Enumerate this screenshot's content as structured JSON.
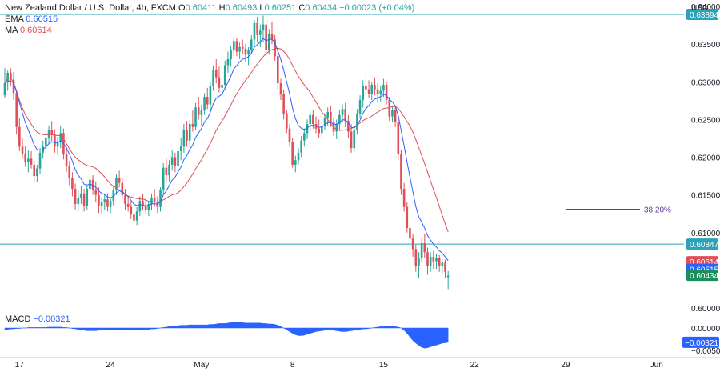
{
  "header": {
    "symbol_line": "New Zealand Dollar / U.S. Dollar, 4h, FXCM",
    "ohlc": [
      {
        "k": "O",
        "v": "0.60411"
      },
      {
        "k": "H",
        "v": "0.60493"
      },
      {
        "k": "L",
        "v": "0.60251"
      },
      {
        "k": "C",
        "v": "0.60434"
      }
    ],
    "change": "+0.00023 (+0.04%)",
    "ema_label": "EMA",
    "ema_value": "0.60515",
    "ma_label": "MA",
    "ma_value": "0.60614",
    "macd_label": "MACD",
    "macd_value": "−0.00321"
  },
  "colors": {
    "up": "#26a69a",
    "down": "#e04f57",
    "ema": "#2962ff",
    "ma": "#e04f57",
    "hline": "#2aa3b8",
    "fib": "#5b3a99",
    "macd": "#2962ff",
    "close_tag": "#1b8f5b"
  },
  "chart_data": [
    {
      "type": "candlestick",
      "title": "New Zealand Dollar / U.S. Dollar, 4h, FXCM",
      "ylabel": "USD",
      "ylim": [
        0.6,
        0.64
      ],
      "y_ticks": [
        "0.64000",
        "0.63500",
        "0.63000",
        "0.62500",
        "0.62000",
        "0.61500",
        "0.61000",
        "0.60000"
      ],
      "x_ticks": [
        "17",
        "24",
        "May",
        "8",
        "15",
        "22",
        "29",
        "Jun"
      ],
      "x_tick_index": [
        5,
        36,
        67,
        98,
        129,
        160,
        191,
        222
      ],
      "ohlc": [
        [
          0.6282,
          0.6318,
          0.6278,
          0.6298
        ],
        [
          0.6299,
          0.6315,
          0.6288,
          0.6312
        ],
        [
          0.6312,
          0.6318,
          0.6294,
          0.6303
        ],
        [
          0.6303,
          0.6313,
          0.6276,
          0.6285
        ],
        [
          0.6285,
          0.6288,
          0.623,
          0.624
        ],
        [
          0.624,
          0.6252,
          0.6208,
          0.6214
        ],
        [
          0.6214,
          0.6226,
          0.6198,
          0.6205
        ],
        [
          0.6205,
          0.6215,
          0.6187,
          0.6194
        ],
        [
          0.6194,
          0.6209,
          0.618,
          0.6198
        ],
        [
          0.6198,
          0.6208,
          0.6185,
          0.619
        ],
        [
          0.619,
          0.6196,
          0.6166,
          0.6175
        ],
        [
          0.6175,
          0.619,
          0.6167,
          0.6185
        ],
        [
          0.6185,
          0.6212,
          0.6178,
          0.6206
        ],
        [
          0.6206,
          0.6222,
          0.6198,
          0.6214
        ],
        [
          0.6214,
          0.6232,
          0.6206,
          0.6226
        ],
        [
          0.6226,
          0.6242,
          0.6217,
          0.6236
        ],
        [
          0.6236,
          0.6248,
          0.6221,
          0.623
        ],
        [
          0.623,
          0.6237,
          0.6206,
          0.6214
        ],
        [
          0.6214,
          0.6227,
          0.6203,
          0.622
        ],
        [
          0.622,
          0.6242,
          0.6212,
          0.6232
        ],
        [
          0.6232,
          0.6238,
          0.6197,
          0.6204
        ],
        [
          0.6204,
          0.6214,
          0.618,
          0.6188
        ],
        [
          0.6188,
          0.6195,
          0.6163,
          0.6172
        ],
        [
          0.6172,
          0.618,
          0.6148,
          0.6158
        ],
        [
          0.6158,
          0.6165,
          0.613,
          0.6138
        ],
        [
          0.6138,
          0.6156,
          0.6128,
          0.6146
        ],
        [
          0.6146,
          0.6162,
          0.6138,
          0.6152
        ],
        [
          0.6152,
          0.6158,
          0.6128,
          0.6136
        ],
        [
          0.6136,
          0.6162,
          0.613,
          0.6158
        ],
        [
          0.6158,
          0.6178,
          0.615,
          0.617
        ],
        [
          0.617,
          0.6176,
          0.615,
          0.6156
        ],
        [
          0.6156,
          0.6168,
          0.614,
          0.615
        ],
        [
          0.615,
          0.616,
          0.6126,
          0.6135
        ],
        [
          0.6135,
          0.6145,
          0.6124,
          0.614
        ],
        [
          0.614,
          0.6152,
          0.613,
          0.6144
        ],
        [
          0.6144,
          0.6152,
          0.6128,
          0.6134
        ],
        [
          0.6134,
          0.6146,
          0.6126,
          0.6142
        ],
        [
          0.6142,
          0.6162,
          0.6136,
          0.6156
        ],
        [
          0.6156,
          0.6178,
          0.615,
          0.6172
        ],
        [
          0.6172,
          0.6182,
          0.616,
          0.6166
        ],
        [
          0.6166,
          0.6172,
          0.6144,
          0.615
        ],
        [
          0.615,
          0.6158,
          0.613,
          0.6138
        ],
        [
          0.6138,
          0.6148,
          0.6128,
          0.6134
        ],
        [
          0.6134,
          0.6142,
          0.6118,
          0.6124
        ],
        [
          0.6124,
          0.613,
          0.6112,
          0.6116
        ],
        [
          0.6116,
          0.6134,
          0.611,
          0.6128
        ],
        [
          0.6128,
          0.6148,
          0.6122,
          0.6142
        ],
        [
          0.6142,
          0.6152,
          0.613,
          0.6136
        ],
        [
          0.6136,
          0.6146,
          0.6124,
          0.613
        ],
        [
          0.613,
          0.6142,
          0.6122,
          0.6138
        ],
        [
          0.6138,
          0.6152,
          0.613,
          0.6146
        ],
        [
          0.6146,
          0.6158,
          0.6134,
          0.614
        ],
        [
          0.614,
          0.6148,
          0.6126,
          0.6134
        ],
        [
          0.6134,
          0.616,
          0.6128,
          0.6156
        ],
        [
          0.6156,
          0.6192,
          0.615,
          0.6186
        ],
        [
          0.6186,
          0.6198,
          0.6168,
          0.6176
        ],
        [
          0.6176,
          0.6196,
          0.6168,
          0.619
        ],
        [
          0.619,
          0.621,
          0.6182,
          0.62
        ],
        [
          0.62,
          0.6206,
          0.618,
          0.6188
        ],
        [
          0.6188,
          0.6212,
          0.6182,
          0.6208
        ],
        [
          0.6208,
          0.6226,
          0.6196,
          0.6214
        ],
        [
          0.6214,
          0.6244,
          0.6206,
          0.6236
        ],
        [
          0.6236,
          0.6248,
          0.6214,
          0.6222
        ],
        [
          0.6222,
          0.625,
          0.6216,
          0.6244
        ],
        [
          0.6244,
          0.6262,
          0.6234,
          0.624
        ],
        [
          0.624,
          0.6272,
          0.6236,
          0.6266
        ],
        [
          0.6266,
          0.628,
          0.625,
          0.6256
        ],
        [
          0.6256,
          0.627,
          0.6242,
          0.6262
        ],
        [
          0.6262,
          0.6285,
          0.6256,
          0.628
        ],
        [
          0.628,
          0.6292,
          0.6264,
          0.627
        ],
        [
          0.627,
          0.63,
          0.6262,
          0.6294
        ],
        [
          0.6294,
          0.6322,
          0.6288,
          0.6316
        ],
        [
          0.6316,
          0.633,
          0.6298,
          0.6306
        ],
        [
          0.6306,
          0.632,
          0.6286,
          0.6292
        ],
        [
          0.6292,
          0.6304,
          0.6278,
          0.6296
        ],
        [
          0.6296,
          0.6328,
          0.629,
          0.6322
        ],
        [
          0.6322,
          0.634,
          0.6312,
          0.633
        ],
        [
          0.633,
          0.6348,
          0.632,
          0.6342
        ],
        [
          0.6342,
          0.636,
          0.6334,
          0.6354
        ],
        [
          0.6354,
          0.6358,
          0.6334,
          0.634
        ],
        [
          0.634,
          0.6352,
          0.633,
          0.6346
        ],
        [
          0.6346,
          0.6356,
          0.6336,
          0.6344
        ],
        [
          0.6344,
          0.635,
          0.6326,
          0.6336
        ],
        [
          0.6336,
          0.6346,
          0.6322,
          0.6342
        ],
        [
          0.6342,
          0.6362,
          0.6336,
          0.6356
        ],
        [
          0.6356,
          0.6382,
          0.6348,
          0.6378
        ],
        [
          0.6378,
          0.6386,
          0.6352,
          0.6362
        ],
        [
          0.6362,
          0.6376,
          0.6346,
          0.6368
        ],
        [
          0.6368,
          0.6388,
          0.6352,
          0.6376
        ],
        [
          0.6376,
          0.6382,
          0.6334,
          0.6342
        ],
        [
          0.6342,
          0.637,
          0.6336,
          0.6364
        ],
        [
          0.6364,
          0.638,
          0.635,
          0.6356
        ],
        [
          0.6356,
          0.6362,
          0.6328,
          0.6334
        ],
        [
          0.6334,
          0.6342,
          0.629,
          0.6298
        ],
        [
          0.6298,
          0.6304,
          0.6276,
          0.6284
        ],
        [
          0.6284,
          0.629,
          0.625,
          0.6258
        ],
        [
          0.6258,
          0.6262,
          0.6232,
          0.6238
        ],
        [
          0.6238,
          0.6244,
          0.6214,
          0.622
        ],
        [
          0.622,
          0.6226,
          0.6186,
          0.619
        ],
        [
          0.619,
          0.6202,
          0.618,
          0.6196
        ],
        [
          0.6196,
          0.6212,
          0.619,
          0.6206
        ],
        [
          0.6206,
          0.6228,
          0.62,
          0.6222
        ],
        [
          0.6222,
          0.6238,
          0.6214,
          0.6232
        ],
        [
          0.6232,
          0.625,
          0.6224,
          0.6244
        ],
        [
          0.6244,
          0.6262,
          0.6236,
          0.6256
        ],
        [
          0.6256,
          0.6262,
          0.6238,
          0.6244
        ],
        [
          0.6244,
          0.6254,
          0.6232,
          0.6238
        ],
        [
          0.6238,
          0.625,
          0.6226,
          0.6232
        ],
        [
          0.6232,
          0.6248,
          0.6224,
          0.6242
        ],
        [
          0.6242,
          0.6258,
          0.6236,
          0.6252
        ],
        [
          0.6252,
          0.6266,
          0.6242,
          0.626
        ],
        [
          0.626,
          0.6268,
          0.624,
          0.6246
        ],
        [
          0.6246,
          0.6252,
          0.6228,
          0.6234
        ],
        [
          0.6234,
          0.625,
          0.6224,
          0.6244
        ],
        [
          0.6244,
          0.6262,
          0.6236,
          0.6256
        ],
        [
          0.6256,
          0.627,
          0.6246,
          0.6264
        ],
        [
          0.6264,
          0.6272,
          0.624,
          0.6248
        ],
        [
          0.6248,
          0.6256,
          0.6226,
          0.6234
        ],
        [
          0.6234,
          0.6244,
          0.6206,
          0.6212
        ],
        [
          0.6212,
          0.624,
          0.6206,
          0.6236
        ],
        [
          0.6236,
          0.6264,
          0.623,
          0.6258
        ],
        [
          0.6258,
          0.6282,
          0.6252,
          0.6276
        ],
        [
          0.6276,
          0.6302,
          0.6266,
          0.6294
        ],
        [
          0.6294,
          0.6308,
          0.628,
          0.629
        ],
        [
          0.629,
          0.6302,
          0.6278,
          0.6284
        ],
        [
          0.6284,
          0.63,
          0.6276,
          0.6296
        ],
        [
          0.6296,
          0.6306,
          0.6282,
          0.629
        ],
        [
          0.629,
          0.6298,
          0.6272,
          0.6284
        ],
        [
          0.6284,
          0.6294,
          0.6274,
          0.6288
        ],
        [
          0.6288,
          0.6304,
          0.628,
          0.6296
        ],
        [
          0.6296,
          0.63,
          0.627,
          0.6276
        ],
        [
          0.6276,
          0.628,
          0.6248,
          0.6254
        ],
        [
          0.6254,
          0.6268,
          0.6246,
          0.6262
        ],
        [
          0.6262,
          0.6266,
          0.624,
          0.6246
        ],
        [
          0.6246,
          0.625,
          0.6196,
          0.6204
        ],
        [
          0.6204,
          0.621,
          0.615,
          0.6158
        ],
        [
          0.6158,
          0.6166,
          0.6128,
          0.6134
        ],
        [
          0.6134,
          0.614,
          0.61,
          0.6106
        ],
        [
          0.6106,
          0.6114,
          0.6084,
          0.6092
        ],
        [
          0.6092,
          0.6098,
          0.6068,
          0.6078
        ],
        [
          0.6078,
          0.6084,
          0.6048,
          0.6056
        ],
        [
          0.6056,
          0.6074,
          0.604,
          0.6066
        ],
        [
          0.6066,
          0.6092,
          0.606,
          0.6086
        ],
        [
          0.6086,
          0.6098,
          0.6066,
          0.6074
        ],
        [
          0.6074,
          0.608,
          0.6044,
          0.6056
        ],
        [
          0.6056,
          0.6074,
          0.6048,
          0.6068
        ],
        [
          0.6068,
          0.6076,
          0.6052,
          0.6062
        ],
        [
          0.6062,
          0.6072,
          0.6052,
          0.6066
        ],
        [
          0.6066,
          0.607,
          0.6048,
          0.6056
        ],
        [
          0.6056,
          0.6064,
          0.6046,
          0.606
        ],
        [
          0.606,
          0.6064,
          0.604,
          0.6048
        ],
        [
          0.6041,
          0.6049,
          0.6025,
          0.6043
        ]
      ],
      "series": [
        {
          "name": "EMA",
          "last": 0.60515
        },
        {
          "name": "MA",
          "last": 0.60614
        }
      ],
      "horizontal_lines": [
        0.63894,
        0.60847
      ],
      "fib_level": {
        "label": "38.20%",
        "value": 0.6131
      },
      "price_tags": [
        {
          "value": 0.63894,
          "text": "0.63894",
          "kind": "hline"
        },
        {
          "value": 0.60847,
          "text": "0.60847",
          "kind": "hline"
        },
        {
          "value": 0.60614,
          "text": "0.60614",
          "kind": "ma"
        },
        {
          "value": 0.60515,
          "text": "0.60515",
          "kind": "ema"
        },
        {
          "value": 0.60434,
          "text": "0.60434",
          "kind": "close"
        }
      ]
    },
    {
      "type": "area",
      "title": "MACD",
      "ylim": [
        -0.0055,
        0.0015
      ],
      "y_ticks": [
        "0.00000",
        "−0.00500"
      ],
      "current_tag": "−0.00321",
      "values": [
        -0.0004,
        -0.0003,
        -0.0002,
        -0.0002,
        -0.0001,
        -0.0001,
        0.0,
        0.0,
        0.0001,
        0.0001,
        0.0001,
        0.0001,
        0.0001,
        0.0001,
        0.0001,
        0.0002,
        0.0002,
        0.0002,
        0.0002,
        0.0002,
        0.0001,
        0.0001,
        0.0,
        -0.0001,
        -0.0002,
        -0.0003,
        -0.0004,
        -0.0005,
        -0.0006,
        -0.0006,
        -0.0006,
        -0.0006,
        -0.0005,
        -0.0005,
        -0.0004,
        -0.0004,
        -0.0004,
        -0.0004,
        -0.0004,
        -0.0004,
        -0.0004,
        -0.0004,
        -0.0005,
        -0.0005,
        -0.0005,
        -0.0004,
        -0.0004,
        -0.0003,
        -0.0003,
        -0.0003,
        -0.0002,
        -0.0002,
        -0.0001,
        0.0,
        0.0001,
        0.0002,
        0.0003,
        0.0004,
        0.0005,
        0.0005,
        0.0006,
        0.0006,
        0.0006,
        0.0007,
        0.0007,
        0.0007,
        0.0007,
        0.0007,
        0.0007,
        0.0007,
        0.0008,
        0.0008,
        0.0009,
        0.001,
        0.001,
        0.001,
        0.0011,
        0.0012,
        0.0013,
        0.0014,
        0.0013,
        0.0012,
        0.0011,
        0.0011,
        0.0011,
        0.0011,
        0.0011,
        0.0011,
        0.001,
        0.001,
        0.0009,
        0.0009,
        0.0008,
        0.0006,
        0.0003,
        0.0,
        -0.0004,
        -0.0008,
        -0.0012,
        -0.0015,
        -0.0017,
        -0.0017,
        -0.0016,
        -0.0014,
        -0.0012,
        -0.001,
        -0.0008,
        -0.0007,
        -0.0006,
        -0.0005,
        -0.0004,
        -0.0004,
        -0.0005,
        -0.0006,
        -0.0007,
        -0.0008,
        -0.0008,
        -0.0007,
        -0.0006,
        -0.0005,
        -0.0004,
        -0.0003,
        -0.0002,
        -0.0002,
        -0.0001,
        0.0,
        0.0001,
        0.0002,
        0.0003,
        0.0003,
        0.0004,
        0.0004,
        0.0004,
        0.0003,
        0.0002,
        0.0,
        -0.0005,
        -0.0012,
        -0.002,
        -0.0028,
        -0.0034,
        -0.0039,
        -0.0043,
        -0.0045,
        -0.0044,
        -0.0042,
        -0.004,
        -0.0038,
        -0.0036,
        -0.0034,
        -0.0033,
        -0.0032
      ]
    }
  ]
}
